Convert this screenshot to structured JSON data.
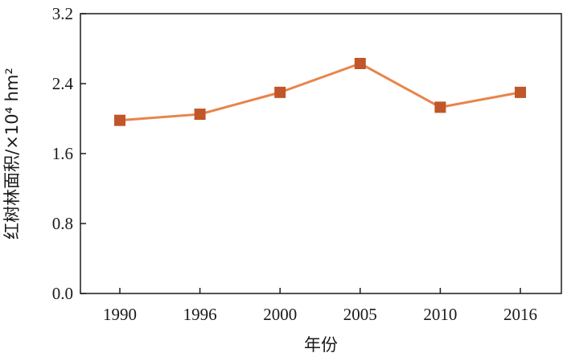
{
  "chart_data": {
    "type": "line",
    "title": "",
    "xlabel": "年份",
    "ylabel": "红树林面积/×10⁴ hm²",
    "categories": [
      "1990",
      "1996",
      "2000",
      "2005",
      "2010",
      "2016"
    ],
    "series": [
      {
        "values": [
          1.98,
          2.05,
          2.3,
          2.63,
          2.13,
          2.3
        ]
      }
    ],
    "ylim": [
      0.0,
      3.2
    ],
    "yticks": [
      "0.0",
      "0.8",
      "1.6",
      "2.4",
      "3.2"
    ],
    "grid": false,
    "legend": "none",
    "colors": {
      "line": "#E8844A",
      "marker": "#C0562A",
      "axis": "#1a1a1a"
    }
  }
}
